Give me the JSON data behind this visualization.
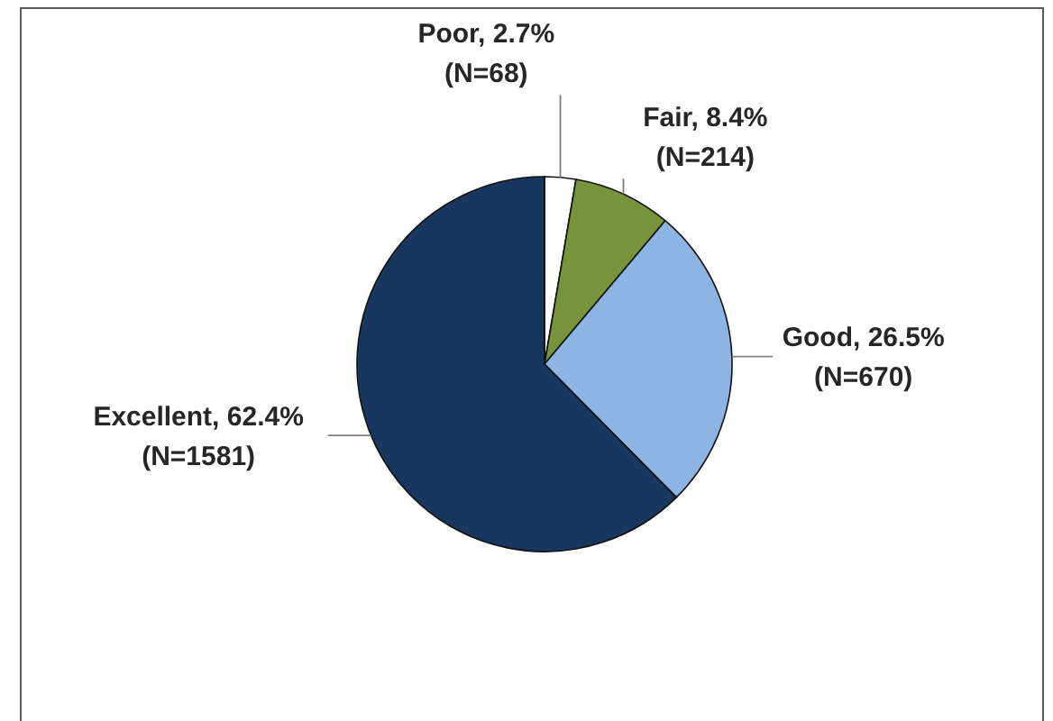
{
  "chart_data": {
    "type": "pie",
    "categories": [
      "Poor",
      "Fair",
      "Good",
      "Excellent"
    ],
    "values": [
      68,
      214,
      670,
      1581
    ],
    "colors": [
      "#ffffff",
      "#77933c",
      "#8eb4e3",
      "#17375e"
    ],
    "value_labels": [
      "2.7% (N=68)",
      "8.4% (N=214)",
      "26.5% (N=670)",
      "62.4% (N=1581)"
    ]
  }
}
